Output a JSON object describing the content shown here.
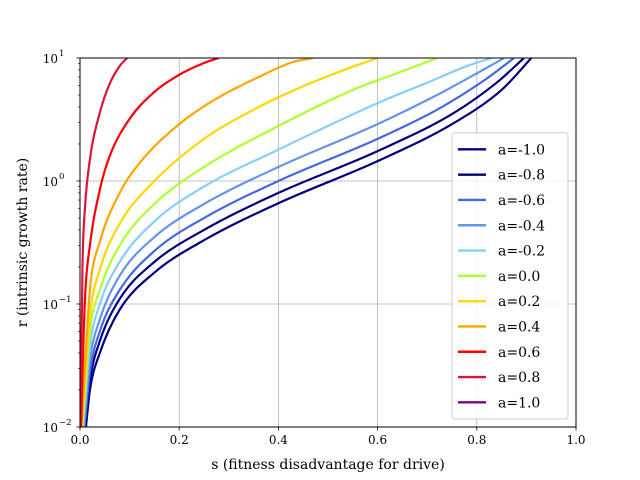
{
  "chart_data": {
    "type": "line",
    "title": "",
    "xlabel": "s (fitness disadvantage for drive)",
    "ylabel": "r (intrinsic growth rate)",
    "xlim": [
      0.0,
      1.0
    ],
    "ylim": [
      0.01,
      10
    ],
    "yscale": "log",
    "grid": true,
    "legend_position": "lower-right",
    "x_ticks": [
      "0.0",
      "0.2",
      "0.4",
      "0.6",
      "0.8",
      "1.0"
    ],
    "y_ticks": [
      {
        "base": "10",
        "exp": "−2"
      },
      {
        "base": "10",
        "exp": "−1"
      },
      {
        "base": "10",
        "exp": "0"
      },
      {
        "base": "10",
        "exp": "1"
      }
    ],
    "series": [
      {
        "name": "a=-1.0",
        "color": "#000080",
        "x": [
          0.012,
          0.02,
          0.04,
          0.08,
          0.15,
          0.25,
          0.4,
          0.6,
          0.75,
          0.85,
          0.91
        ],
        "y": [
          0.01,
          0.02,
          0.04,
          0.09,
          0.18,
          0.33,
          0.66,
          1.45,
          2.9,
          5.5,
          10
        ]
      },
      {
        "name": "a=-0.8",
        "color": "#00007f",
        "x": [
          0.01,
          0.02,
          0.04,
          0.08,
          0.15,
          0.25,
          0.4,
          0.6,
          0.75,
          0.84,
          0.895
        ],
        "y": [
          0.01,
          0.024,
          0.05,
          0.11,
          0.22,
          0.4,
          0.8,
          1.75,
          3.5,
          6.3,
          10
        ]
      },
      {
        "name": "a=-0.6",
        "color": "#4169e1",
        "x": [
          0.009,
          0.02,
          0.04,
          0.08,
          0.15,
          0.25,
          0.4,
          0.6,
          0.72,
          0.82,
          0.875
        ],
        "y": [
          0.01,
          0.028,
          0.06,
          0.13,
          0.27,
          0.5,
          1.0,
          2.2,
          3.8,
          6.8,
          10
        ]
      },
      {
        "name": "a=-0.4",
        "color": "#6495ed",
        "x": [
          0.007,
          0.02,
          0.04,
          0.08,
          0.15,
          0.25,
          0.4,
          0.6,
          0.72,
          0.8,
          0.855
        ],
        "y": [
          0.01,
          0.035,
          0.075,
          0.17,
          0.35,
          0.65,
          1.3,
          2.9,
          5.0,
          7.5,
          10
        ]
      },
      {
        "name": "a=-0.2",
        "color": "#87cefa",
        "x": [
          0.006,
          0.02,
          0.04,
          0.08,
          0.15,
          0.25,
          0.4,
          0.6,
          0.7,
          0.78,
          0.83
        ],
        "y": [
          0.01,
          0.045,
          0.1,
          0.22,
          0.47,
          0.9,
          1.8,
          4.3,
          6.3,
          8.6,
          10
        ]
      },
      {
        "name": "a=0.0",
        "color": "#adff2f",
        "x": [
          0.005,
          0.02,
          0.04,
          0.08,
          0.15,
          0.25,
          0.4,
          0.55,
          0.65,
          0.72
        ],
        "y": [
          0.01,
          0.06,
          0.13,
          0.3,
          0.65,
          1.3,
          2.8,
          5.5,
          7.8,
          10
        ]
      },
      {
        "name": "a=0.2",
        "color": "#ffd700",
        "x": [
          0.004,
          0.02,
          0.04,
          0.08,
          0.15,
          0.25,
          0.35,
          0.45,
          0.55,
          0.6
        ],
        "y": [
          0.01,
          0.08,
          0.19,
          0.45,
          1.0,
          2.2,
          3.8,
          5.9,
          8.5,
          10
        ]
      },
      {
        "name": "a=0.4",
        "color": "#ffa500",
        "x": [
          0.003,
          0.02,
          0.04,
          0.08,
          0.12,
          0.2,
          0.28,
          0.36,
          0.43,
          0.47
        ],
        "y": [
          0.01,
          0.13,
          0.32,
          0.8,
          1.4,
          2.9,
          4.8,
          7.0,
          9.3,
          10
        ]
      },
      {
        "name": "a=0.6",
        "color": "#ff0000",
        "x": [
          0.002,
          0.01,
          0.02,
          0.04,
          0.06,
          0.1,
          0.15,
          0.2,
          0.25,
          0.28
        ],
        "y": [
          0.01,
          0.11,
          0.3,
          0.85,
          1.6,
          3.2,
          5.3,
          7.3,
          9.1,
          10
        ]
      },
      {
        "name": "a=0.8",
        "color": "#dc143c",
        "x": [
          0.001,
          0.005,
          0.01,
          0.02,
          0.04,
          0.06,
          0.08,
          0.095
        ],
        "y": [
          0.01,
          0.2,
          0.6,
          1.5,
          3.6,
          6.2,
          8.6,
          10
        ]
      },
      {
        "name": "a=1.0",
        "color": "#800080",
        "x": [],
        "y": []
      }
    ]
  }
}
